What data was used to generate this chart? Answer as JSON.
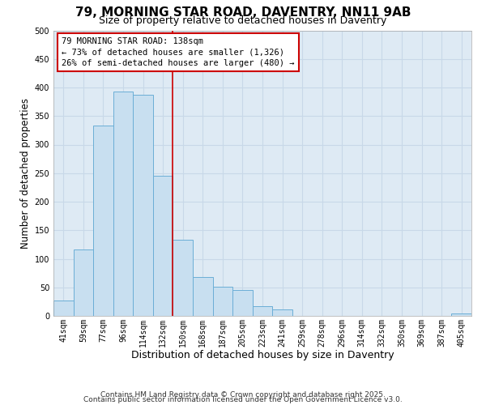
{
  "title": "79, MORNING STAR ROAD, DAVENTRY, NN11 9AB",
  "subtitle": "Size of property relative to detached houses in Daventry",
  "xlabel": "Distribution of detached houses by size in Daventry",
  "ylabel": "Number of detached properties",
  "bar_labels": [
    "41sqm",
    "59sqm",
    "77sqm",
    "96sqm",
    "114sqm",
    "132sqm",
    "150sqm",
    "168sqm",
    "187sqm",
    "205sqm",
    "223sqm",
    "241sqm",
    "259sqm",
    "278sqm",
    "296sqm",
    "314sqm",
    "332sqm",
    "350sqm",
    "369sqm",
    "387sqm",
    "405sqm"
  ],
  "bar_values": [
    27,
    117,
    333,
    393,
    387,
    245,
    133,
    68,
    51,
    46,
    17,
    11,
    0,
    0,
    0,
    0,
    0,
    0,
    0,
    0,
    4
  ],
  "bar_color": "#c8dff0",
  "bar_edge_color": "#6baed6",
  "grid_color": "#c8d8e8",
  "background_color": "#deeaf4",
  "ylim": [
    0,
    500
  ],
  "yticks": [
    0,
    50,
    100,
    150,
    200,
    250,
    300,
    350,
    400,
    450,
    500
  ],
  "property_line_x": 5.5,
  "property_line_color": "#cc0000",
  "annotation_line1": "79 MORNING STAR ROAD: 138sqm",
  "annotation_line2": "← 73% of detached houses are smaller (1,326)",
  "annotation_line3": "26% of semi-detached houses are larger (480) →",
  "annotation_box_color": "#cc0000",
  "footer_line1": "Contains HM Land Registry data © Crown copyright and database right 2025.",
  "footer_line2": "Contains public sector information licensed under the Open Government Licence v3.0.",
  "title_fontsize": 11,
  "subtitle_fontsize": 9,
  "xlabel_fontsize": 9,
  "ylabel_fontsize": 8.5,
  "tick_fontsize": 7,
  "annotation_fontsize": 7.5,
  "footer_fontsize": 6.5
}
